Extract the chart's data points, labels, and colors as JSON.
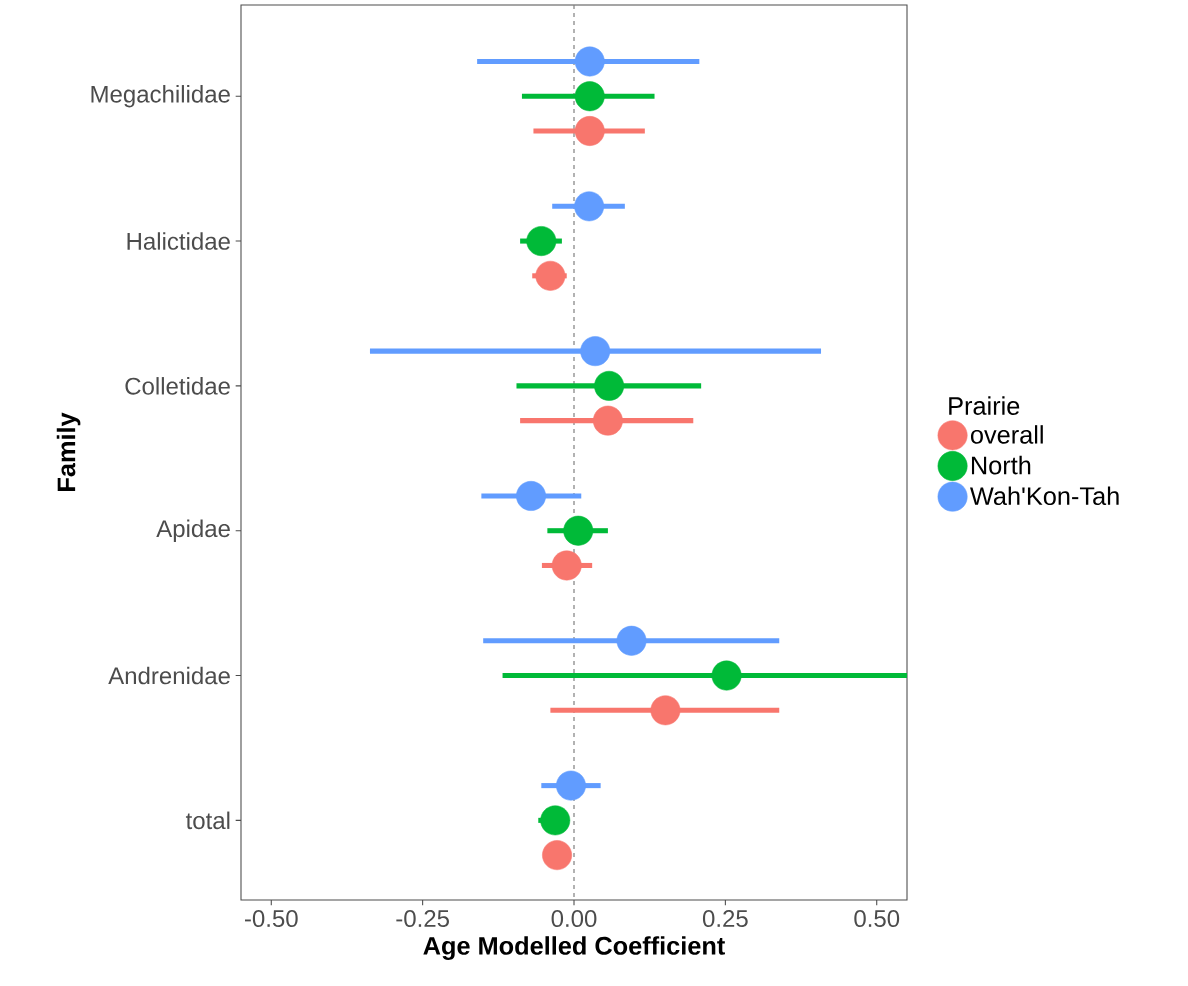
{
  "chart_data": {
    "type": "scatter",
    "orientation": "horizontal",
    "xlabel": "Age Modelled Coefficient",
    "ylabel": "Family",
    "legend_title": "Prairie",
    "legend": "right",
    "marker": "circle",
    "categories": [
      "Megachilidae",
      "Halictidae",
      "Colletidae",
      "Apidae",
      "Andrenidae",
      "total"
    ],
    "xlim": [
      -0.55,
      0.55
    ],
    "xticks": [
      {
        "value": -0.5,
        "label": "-0.50"
      },
      {
        "value": -0.25,
        "label": "-0.25"
      },
      {
        "value": 0,
        "label": "0.00"
      },
      {
        "value": 0.25,
        "label": "0.25"
      },
      {
        "value": 0.5,
        "label": "0.50"
      }
    ],
    "ref_lines": [
      {
        "axis": "x",
        "value": 0,
        "color": "#7f7f7f",
        "line_style": "dashed"
      }
    ],
    "series": [
      {
        "name": "overall",
        "color": "#f8766d",
        "values": [
          0.026,
          -0.039,
          0.056,
          -0.012,
          0.151,
          -0.028
        ],
        "errors": [
          [
            -0.067,
            0.117
          ],
          [
            -0.069,
            -0.012
          ],
          [
            -0.089,
            0.197
          ],
          [
            -0.053,
            0.03
          ],
          [
            -0.039,
            0.339
          ],
          null
        ]
      },
      {
        "name": "North",
        "color": "#00ba38",
        "values": [
          0.026,
          -0.054,
          0.058,
          0.007,
          0.252,
          -0.031
        ],
        "errors": [
          [
            -0.086,
            0.133
          ],
          [
            -0.089,
            -0.02
          ],
          [
            -0.095,
            0.21
          ],
          [
            -0.044,
            0.056
          ],
          [
            -0.118,
            0.55
          ],
          [
            -0.059,
            -0.031
          ]
        ]
      },
      {
        "name": "Wah'Kon-Tah",
        "color": "#619cff",
        "values": [
          0.026,
          0.025,
          0.035,
          -0.071,
          0.095,
          -0.005
        ],
        "errors": [
          [
            -0.16,
            0.207
          ],
          [
            -0.036,
            0.084
          ],
          [
            -0.337,
            0.408
          ],
          [
            -0.153,
            0.012
          ],
          [
            -0.15,
            0.339
          ],
          [
            -0.054,
            0.044
          ]
        ]
      }
    ]
  }
}
